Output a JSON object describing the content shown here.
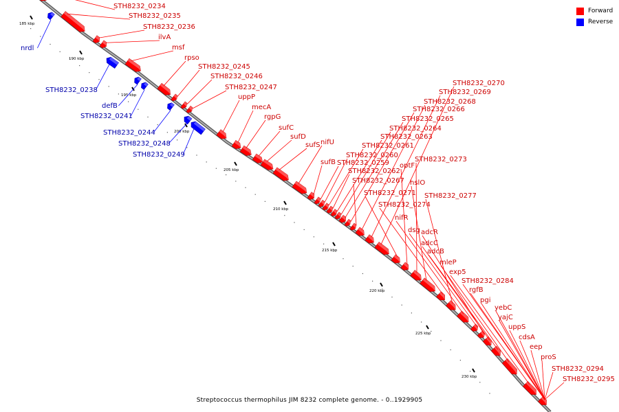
{
  "caption": "Streptococcus thermophilus JIM 8232 complete genome. - 0..1929905",
  "legend": [
    {
      "label": "Forward",
      "color": "#ff0000"
    },
    {
      "label": "Reverse",
      "color": "#0000ff"
    }
  ],
  "colors": {
    "forward": "#ff0000",
    "reverse": "#0000ff",
    "backbone": "#888888",
    "forward_label": "#cc0000",
    "reverse_label": "#0000aa"
  },
  "ruler": [
    {
      "label": "185 kbp",
      "kbp": 185
    },
    {
      "label": "190 kbp",
      "kbp": 190
    },
    {
      "label": "195 kbp",
      "kbp": 195
    },
    {
      "label": "200 kbp",
      "kbp": 200
    },
    {
      "label": "205 kbp",
      "kbp": 205
    },
    {
      "label": "210 kbp",
      "kbp": 210
    },
    {
      "label": "215 kbp",
      "kbp": 215
    },
    {
      "label": "220 kbp",
      "kbp": 220
    },
    {
      "label": "225 kbp",
      "kbp": 225
    },
    {
      "label": "230 kbp",
      "kbp": 230
    }
  ],
  "forward_labels": [
    "STH8232_0234",
    "STH8232_0235",
    "STH8232_0236",
    "ilvA",
    "msf",
    "rpso",
    "STH8232_0245",
    "STH8232_0246",
    "STH8232_0247",
    "uppP",
    "mecA",
    "rgpG",
    "sufC",
    "sufD",
    "sufS",
    "nifU",
    "sufB",
    "STH8232_0259",
    "STH8232_0260",
    "STH8232_0261",
    "STH8232_0262",
    "STH8232_0263",
    "STH8232_0264",
    "STH8232_0265",
    "STH8232_0266",
    "STH8232_0267",
    "STH8232_0268",
    "STH8232_0269",
    "STH8232_0270",
    "STH8232_0271",
    "optF",
    "STH8232_0273",
    "hslO",
    "STH8232_0274",
    "STH8232_0277",
    "nifR",
    "dsg",
    "adcR",
    "adcC",
    "adcB",
    "mleP",
    "exp5",
    "STH8232_0284",
    "rgfB",
    "pgi",
    "yebC",
    "yajC",
    "uppS",
    "cdsA",
    "eep",
    "proS",
    "STH8232_0294",
    "STH8232_0295"
  ],
  "reverse_labels": [
    "nrdl",
    "STH8232_0238",
    "defB",
    "STH8232_0241",
    "STH8232_0244",
    "STH8232_0248",
    "STH8232_0249"
  ]
}
